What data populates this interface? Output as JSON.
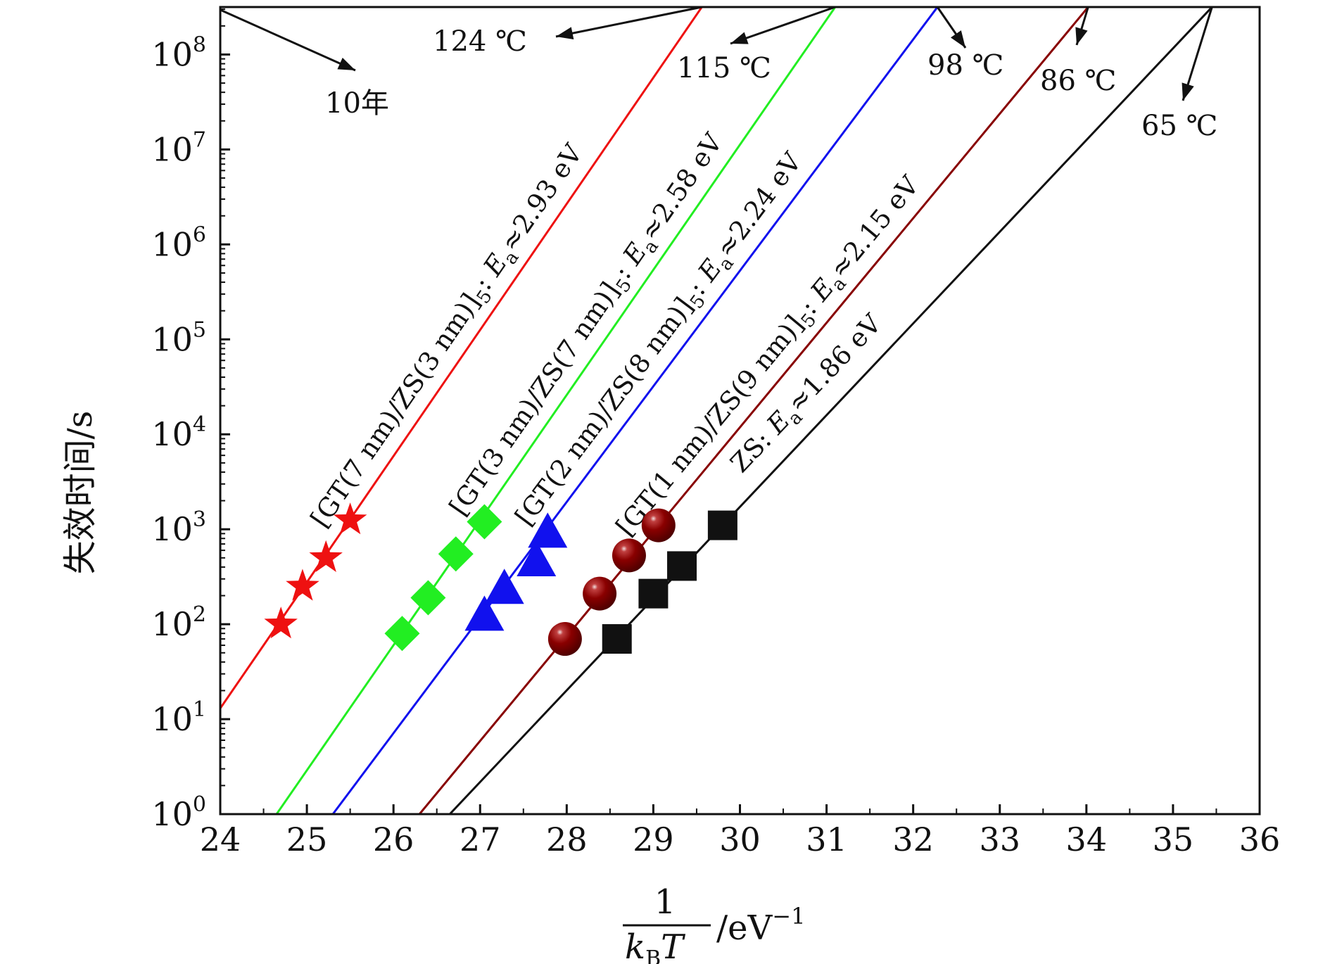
{
  "chart_data": {
    "type": "scatter",
    "xlabel": {
      "numerator": "1",
      "denominator_k": "k",
      "denominator_sub": "B",
      "denominator_T": "T",
      "unit_prefix": "/eV",
      "unit_exp": "−1"
    },
    "ylabel": "失效时间/s",
    "xlim": [
      24,
      36
    ],
    "ylim_log10": [
      0,
      8.5
    ],
    "x_ticks": [
      24,
      25,
      26,
      27,
      28,
      29,
      30,
      31,
      32,
      33,
      34,
      35,
      36
    ],
    "y_tick_base": "10",
    "y_tick_exponents": [
      "0",
      "1",
      "2",
      "3",
      "4",
      "5",
      "6",
      "7",
      "8"
    ],
    "ten_year_label": "10年",
    "series": [
      {
        "name": "GT(7 nm)/ZS(3 nm)",
        "marker": "star",
        "color": "#ee1111",
        "points": [
          [
            24.7,
            100
          ],
          [
            24.95,
            250
          ],
          [
            25.22,
            500
          ],
          [
            25.5,
            1250
          ]
        ],
        "fit": {
          "x1": 24.0,
          "y1": 13,
          "x2": 29.56,
          "y2": 316000000
        },
        "label": {
          "a": "[GT(7 nm)/ZS(3 nm)]",
          "sub": "5",
          "b": ": ",
          "E": "E",
          "Esub": "a",
          "c": "≈2.93 eV"
        },
        "temperature_label": "124 ℃",
        "temperature_x": 29.56
      },
      {
        "name": "GT(3 nm)/ZS(7 nm)",
        "marker": "diamond",
        "color": "#22ee22",
        "points": [
          [
            26.1,
            80
          ],
          [
            26.4,
            190
          ],
          [
            26.72,
            550
          ],
          [
            27.05,
            1200
          ]
        ],
        "fit": {
          "x1": 24.65,
          "y1": 1,
          "x2": 31.1,
          "y2": 316000000
        },
        "label": {
          "a": "[GT(3 nm)/ZS(7 nm)]",
          "sub": "5",
          "b": ": ",
          "E": "E",
          "Esub": "a",
          "c": "≈2.58 eV"
        },
        "temperature_label": "115 ℃",
        "temperature_x": 31.1
      },
      {
        "name": "GT(2 nm)/ZS(8 nm)",
        "marker": "triangle",
        "color": "#1111ee",
        "points": [
          [
            27.05,
            120
          ],
          [
            27.28,
            230
          ],
          [
            27.65,
            450
          ],
          [
            27.78,
            900
          ]
        ],
        "fit": {
          "x1": 25.3,
          "y1": 1,
          "x2": 32.28,
          "y2": 316000000
        },
        "label": {
          "a": "[GT(2 nm)/ZS(8 nm)]",
          "sub": "5",
          "b": ": ",
          "E": "E",
          "Esub": "a",
          "c": "≈2.24 eV"
        },
        "temperature_label": "98 ℃",
        "temperature_x": 32.28
      },
      {
        "name": "GT(1 nm)/ZS(9 nm)",
        "marker": "sphere",
        "color": "#880000",
        "points": [
          [
            27.98,
            70
          ],
          [
            28.38,
            210
          ],
          [
            28.72,
            530
          ],
          [
            29.06,
            1100
          ]
        ],
        "fit": {
          "x1": 26.3,
          "y1": 1,
          "x2": 34.02,
          "y2": 316000000
        },
        "label": {
          "a": "[GT(1 nm)/ZS(9 nm)]",
          "sub": "5",
          "b": ": ",
          "E": "E",
          "Esub": "a",
          "c": "≈2.15 eV"
        },
        "temperature_label": "86 ℃",
        "temperature_x": 34.02
      },
      {
        "name": "ZS",
        "marker": "square",
        "color": "#111111",
        "points": [
          [
            28.58,
            70
          ],
          [
            29.0,
            210
          ],
          [
            29.33,
            410
          ],
          [
            29.8,
            1100
          ]
        ],
        "fit": {
          "x1": 26.65,
          "y1": 1,
          "x2": 35.45,
          "y2": 316000000
        },
        "label": {
          "a": "ZS",
          "sub": "",
          "b": ": ",
          "E": "E",
          "Esub": "a",
          "c": "≈1.86 eV"
        },
        "temperature_label": "65 ℃",
        "temperature_x": 35.45
      }
    ]
  }
}
